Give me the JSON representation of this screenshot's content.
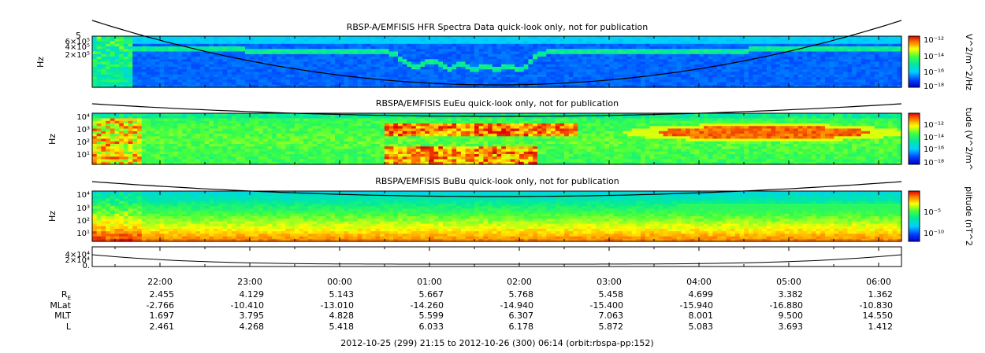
{
  "chart_data": [
    {
      "type": "heatmap",
      "title": "RBSP-A/EMFISIS  HFR Spectra Data quick-look only, not for publication",
      "ylabel": "Hz",
      "yticks": [
        "2×10⁵",
        "4×10⁵",
        "6×10⁵"
      ],
      "top_label": "5",
      "colorbar_label": "V^2/m^2/Hz",
      "colorbar_ticks": [
        "10⁻¹²",
        "10⁻¹⁴",
        "10⁻¹⁶",
        "10⁻¹⁸"
      ],
      "colorbar_range": [
        -18,
        -12
      ]
    },
    {
      "type": "heatmap",
      "title": "RBSPA/EMFISIS  EuEu quick-look only, not for publication",
      "ylabel": "Hz",
      "yticks": [
        "10⁴",
        "10³",
        "10²",
        "10¹"
      ],
      "colorbar_label": "tude (V^2/m^",
      "colorbar_ticks": [
        "10⁻¹²",
        "10⁻¹⁴",
        "10⁻¹⁶",
        "10⁻¹⁸"
      ],
      "colorbar_range": [
        -18,
        -12
      ]
    },
    {
      "type": "heatmap",
      "title": "RBSPA/EMFISIS  BuBu quick-look only, not for publication",
      "ylabel": "Hz",
      "yticks": [
        "10⁴",
        "10³",
        "10²",
        "10¹"
      ],
      "colorbar_label": "plitude (nT^2",
      "colorbar_ticks": [
        "10⁻⁵",
        "10⁻¹⁰"
      ],
      "colorbar_range": [
        -12,
        -3
      ]
    },
    {
      "type": "line",
      "yticks": [
        "4×10⁴",
        "2×10⁴",
        "0."
      ],
      "ylim": [
        0,
        40000
      ]
    }
  ],
  "time_axis": {
    "ticks": [
      "22:00",
      "23:00",
      "00:00",
      "01:00",
      "02:00",
      "03:00",
      "04:00",
      "05:00",
      "06:00"
    ],
    "rows": [
      {
        "label": "R",
        "sub": "E",
        "values": [
          "2.455",
          "4.129",
          "5.143",
          "5.667",
          "5.768",
          "5.458",
          "4.699",
          "3.382",
          "1.362"
        ]
      },
      {
        "label": "MLat",
        "values": [
          "-2.766",
          "-10.410",
          "-13.010",
          "-14.260",
          "-14.940",
          "-15.400",
          "-15.940",
          "-16.880",
          "-10.830"
        ]
      },
      {
        "label": "MLT",
        "values": [
          "1.697",
          "3.795",
          "4.828",
          "5.599",
          "6.307",
          "7.063",
          "8.001",
          "9.500",
          "14.550"
        ]
      },
      {
        "label": "L",
        "values": [
          "2.461",
          "4.268",
          "5.418",
          "6.033",
          "6.178",
          "5.872",
          "5.083",
          "3.693",
          "1.412"
        ]
      }
    ],
    "footer": "2012-10-25 (299) 21:15 to 2012-10-26 (300) 06:14 (orbit:rbspa-pp:152)"
  }
}
